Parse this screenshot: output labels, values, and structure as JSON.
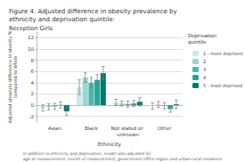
{
  "chart_data": {
    "type": "bar",
    "title": "Figure 4. Adjusted difference in obesity prevalence by ethnicity and deprivation quintile:",
    "subtitle": "Reception Girls",
    "xlabel": "Ethnicity",
    "ylabel": "Adjusted absolute difference in obesity %\ncompared to White",
    "footnote": "In addition to ethnicity and deprivation, model also adjusted for\nage at measurement, month of measurement, government office region and urban-rural residence",
    "legend_title": "Deprivation\nquintile",
    "categories": [
      "Asian",
      "Black",
      "Not stated or unknown",
      "Other"
    ],
    "series": [
      {
        "name": "1 - most deprived",
        "color": "#cceae7",
        "values": [
          -0.5,
          3.2,
          0.5,
          -0.15
        ],
        "errors": [
          0.55,
          1.3,
          0.55,
          0.55
        ]
      },
      {
        "name": "2",
        "color": "#99d6d0",
        "values": [
          -0.3,
          4.9,
          0.3,
          0.1
        ],
        "errors": [
          0.55,
          0.85,
          0.45,
          0.55
        ]
      },
      {
        "name": "3",
        "color": "#4db6ac",
        "values": [
          -0.2,
          4.0,
          0.2,
          -0.1
        ],
        "errors": [
          0.55,
          0.95,
          0.55,
          0.55
        ]
      },
      {
        "name": "4",
        "color": "#26a69a",
        "values": [
          0.05,
          4.5,
          0.3,
          -0.7
        ],
        "errors": [
          0.55,
          0.95,
          0.55,
          0.55
        ]
      },
      {
        "name": "5 - least deprived",
        "color": "#00796b",
        "values": [
          -1.1,
          5.7,
          0.6,
          0.15
        ],
        "errors": [
          0.75,
          1.2,
          0.75,
          0.75
        ]
      }
    ],
    "ylim": [
      -3,
      13
    ],
    "yticks": [
      -2,
      0,
      2,
      4,
      6,
      8,
      10,
      12
    ],
    "grid": true,
    "legend": "upper right"
  }
}
